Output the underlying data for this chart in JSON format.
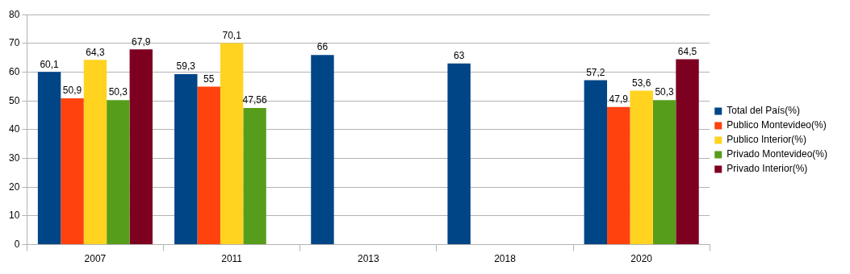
{
  "chart_data": {
    "type": "bar",
    "categories": [
      "2007",
      "2011",
      "2013",
      "2018",
      "2020"
    ],
    "series": [
      {
        "name": "Total del País(%)",
        "color": "#004586",
        "values": [
          60.1,
          59.3,
          66,
          63,
          57.2
        ],
        "value_labels": [
          "60,1",
          "59,3",
          "66",
          "63",
          "57,2"
        ]
      },
      {
        "name": "Publico Montevideo(%)",
        "color": "#ff420e",
        "values": [
          50.9,
          55,
          null,
          null,
          47.9
        ],
        "value_labels": [
          "50,9",
          "55",
          null,
          null,
          "47,9"
        ]
      },
      {
        "name": "Publico Interior(%)",
        "color": "#ffd320",
        "values": [
          64.3,
          70.1,
          null,
          null,
          53.6
        ],
        "value_labels": [
          "64,3",
          "70,1",
          null,
          null,
          "53,6"
        ]
      },
      {
        "name": "Privado Montevideo(%)",
        "color": "#579d1c",
        "values": [
          50.3,
          47.56,
          null,
          null,
          50.3
        ],
        "value_labels": [
          "50,3",
          "47,56",
          null,
          null,
          "50,3"
        ]
      },
      {
        "name": "Privado Interior(%)",
        "color": "#7e0021",
        "values": [
          67.9,
          null,
          null,
          null,
          64.5
        ],
        "value_labels": [
          "67,9",
          null,
          null,
          null,
          "64,5"
        ]
      }
    ],
    "ylim": [
      0,
      80
    ],
    "yticks": [
      0,
      10,
      20,
      30,
      40,
      50,
      60,
      70,
      80
    ],
    "grid": "y",
    "legend": "right"
  }
}
